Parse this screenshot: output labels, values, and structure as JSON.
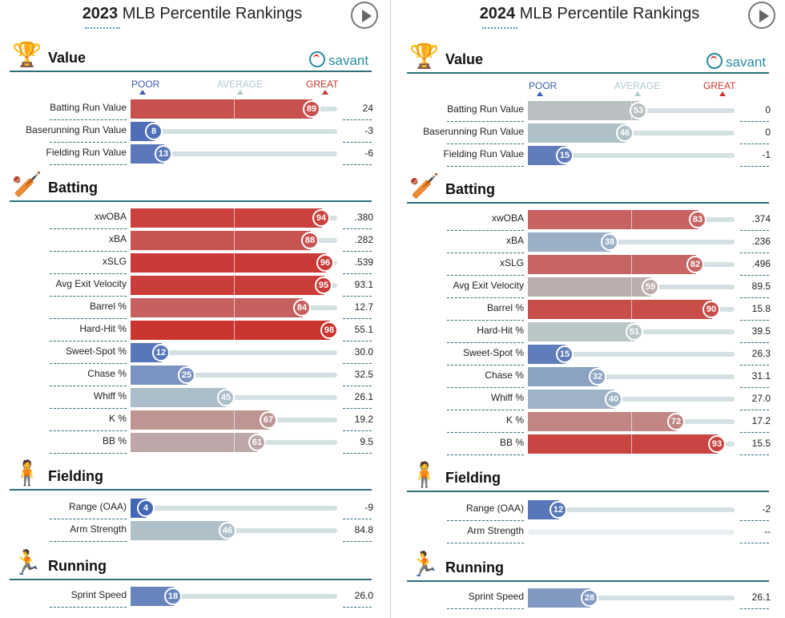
{
  "panels": [
    {
      "title_year": "2023",
      "title_rest": " MLB Percentile Rankings",
      "scale": {
        "poor": "POOR",
        "average": "AVERAGE",
        "great": "GREAT"
      },
      "brand": "savant",
      "sections": {
        "value": {
          "title": "Value",
          "icon": "trophy-icon"
        },
        "batting": {
          "title": "Batting",
          "icon": "batter-icon"
        },
        "fielding": {
          "title": "Fielding",
          "icon": "fielder-icon"
        },
        "running": {
          "title": "Running",
          "icon": "runner-icon"
        }
      },
      "value_rows": [
        {
          "label": "Batting Run Value",
          "pct": 89,
          "stat": "24"
        },
        {
          "label": "Baserunning Run Value",
          "pct": 8,
          "stat": "-3"
        },
        {
          "label": "Fielding Run Value",
          "pct": 13,
          "stat": "-6"
        }
      ],
      "batting_rows": [
        {
          "label": "xwOBA",
          "pct": 94,
          "stat": ".380"
        },
        {
          "label": "xBA",
          "pct": 88,
          "stat": ".282"
        },
        {
          "label": "xSLG",
          "pct": 96,
          "stat": ".539"
        },
        {
          "label": "Avg Exit Velocity",
          "pct": 95,
          "stat": "93.1"
        },
        {
          "label": "Barrel %",
          "pct": 84,
          "stat": "12.7"
        },
        {
          "label": "Hard-Hit %",
          "pct": 98,
          "stat": "55.1"
        },
        {
          "label": "Sweet-Spot %",
          "pct": 12,
          "stat": "30.0"
        },
        {
          "label": "Chase %",
          "pct": 25,
          "stat": "32.5"
        },
        {
          "label": "Whiff %",
          "pct": 45,
          "stat": "26.1"
        },
        {
          "label": "K %",
          "pct": 67,
          "stat": "19.2"
        },
        {
          "label": "BB %",
          "pct": 61,
          "stat": "9.5"
        }
      ],
      "fielding_rows": [
        {
          "label": "Range (OAA)",
          "pct": 4,
          "stat": "-9"
        },
        {
          "label": "Arm Strength",
          "pct": 46,
          "stat": "84.8"
        }
      ],
      "running_rows": [
        {
          "label": "Sprint Speed",
          "pct": 18,
          "stat": "26.0"
        }
      ]
    },
    {
      "title_year": "2024",
      "title_rest": " MLB Percentile Rankings",
      "scale": {
        "poor": "POOR",
        "average": "AVERAGE",
        "great": "GREAT"
      },
      "brand": "savant",
      "sections": {
        "value": {
          "title": "Value",
          "icon": "trophy-icon"
        },
        "batting": {
          "title": "Batting",
          "icon": "batter-icon"
        },
        "fielding": {
          "title": "Fielding",
          "icon": "fielder-icon"
        },
        "running": {
          "title": "Running",
          "icon": "runner-icon"
        }
      },
      "value_rows": [
        {
          "label": "Batting Run Value",
          "pct": 53,
          "stat": "0"
        },
        {
          "label": "Baserunning Run Value",
          "pct": 46,
          "stat": "0"
        },
        {
          "label": "Fielding Run Value",
          "pct": 15,
          "stat": "-1"
        }
      ],
      "batting_rows": [
        {
          "label": "xwOBA",
          "pct": 83,
          "stat": ".374"
        },
        {
          "label": "xBA",
          "pct": 38,
          "stat": ".236"
        },
        {
          "label": "xSLG",
          "pct": 82,
          "stat": ".496"
        },
        {
          "label": "Avg Exit Velocity",
          "pct": 59,
          "stat": "89.5"
        },
        {
          "label": "Barrel %",
          "pct": 90,
          "stat": "15.8"
        },
        {
          "label": "Hard-Hit %",
          "pct": 51,
          "stat": "39.5"
        },
        {
          "label": "Sweet-Spot %",
          "pct": 15,
          "stat": "26.3"
        },
        {
          "label": "Chase %",
          "pct": 32,
          "stat": "31.1"
        },
        {
          "label": "Whiff %",
          "pct": 40,
          "stat": "27.0"
        },
        {
          "label": "K %",
          "pct": 72,
          "stat": "17.2"
        },
        {
          "label": "BB %",
          "pct": 93,
          "stat": "15.5"
        }
      ],
      "fielding_rows": [
        {
          "label": "Range (OAA)",
          "pct": 12,
          "stat": "-2"
        },
        {
          "label": "Arm Strength",
          "pct": null,
          "stat": "--"
        }
      ],
      "running_rows": [
        {
          "label": "Sprint Speed",
          "pct": 28,
          "stat": "26.1"
        }
      ]
    }
  ]
}
